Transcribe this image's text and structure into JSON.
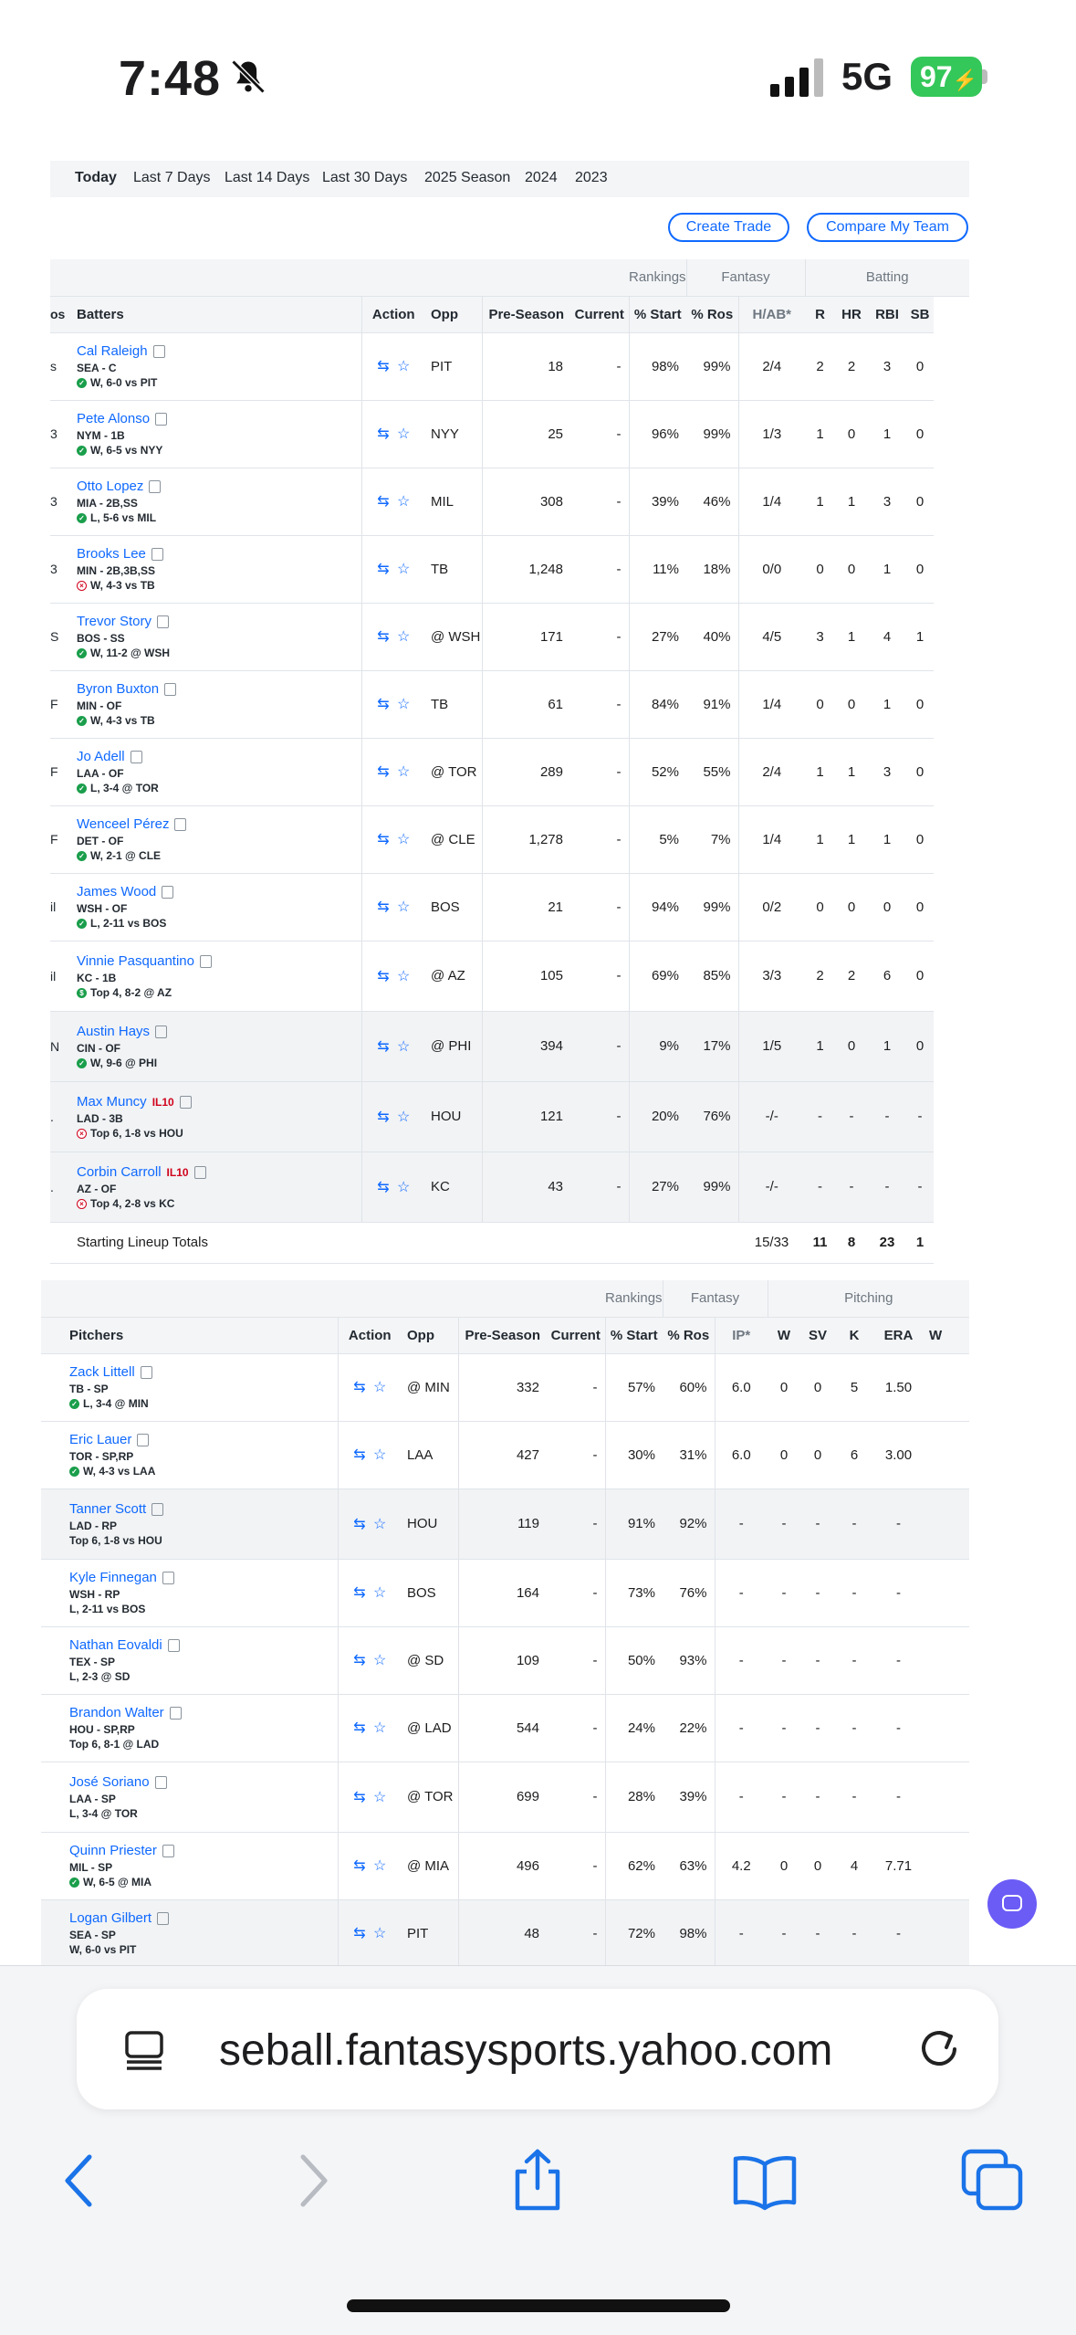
{
  "status_bar": {
    "time": "7:48",
    "network": "5G",
    "battery": "97"
  },
  "period_tabs": [
    "Today",
    "Last 7 Days",
    "Last 14 Days",
    "Last 30 Days",
    "2025 Season",
    "2024",
    "2023"
  ],
  "buttons": {
    "create_trade": "Create Trade",
    "compare_team": "Compare My Team"
  },
  "batters": {
    "groups": {
      "rankings": "Rankings",
      "fantasy": "Fantasy",
      "batting": "Batting"
    },
    "columns": [
      "Batters",
      "Action",
      "Opp",
      "Pre-Season",
      "Current",
      "% Start",
      "% Ros",
      "H/AB*",
      "R",
      "HR",
      "RBI",
      "SB"
    ],
    "rows": [
      {
        "edge": "s",
        "name": "Cal Raleigh",
        "pos": "SEA - C",
        "game": "W, 6-0 vs PIT",
        "status": "win",
        "opp": "PIT",
        "pre": "18",
        "cur": "-",
        "start": "98%",
        "ros": "99%",
        "hab": "2/4",
        "r": "2",
        "hr": "2",
        "rbi": "3",
        "sb": "0"
      },
      {
        "edge": "3",
        "name": "Pete Alonso",
        "pos": "NYM - 1B",
        "game": "W, 6-5 vs NYY",
        "status": "win",
        "opp": "NYY",
        "pre": "25",
        "cur": "-",
        "start": "96%",
        "ros": "99%",
        "hab": "1/3",
        "r": "1",
        "hr": "0",
        "rbi": "1",
        "sb": "0"
      },
      {
        "edge": "3",
        "name": "Otto Lopez",
        "pos": "MIA - 2B,SS",
        "game": "L, 5-6 vs MIL",
        "status": "win",
        "opp": "MIL",
        "pre": "308",
        "cur": "-",
        "start": "39%",
        "ros": "46%",
        "hab": "1/4",
        "r": "1",
        "hr": "1",
        "rbi": "3",
        "sb": "0"
      },
      {
        "edge": "3",
        "name": "Brooks Lee",
        "pos": "MIN - 2B,3B,SS",
        "game": "W, 4-3 vs TB",
        "status": "loss",
        "opp": "TB",
        "pre": "1,248",
        "cur": "-",
        "start": "11%",
        "ros": "18%",
        "hab": "0/0",
        "r": "0",
        "hr": "0",
        "rbi": "1",
        "sb": "0"
      },
      {
        "edge": "S",
        "name": "Trevor Story",
        "pos": "BOS - SS",
        "game": "W, 11-2 @ WSH",
        "status": "win",
        "opp": "@ WSH",
        "pre": "171",
        "cur": "-",
        "start": "27%",
        "ros": "40%",
        "hab": "4/5",
        "r": "3",
        "hr": "1",
        "rbi": "4",
        "sb": "1"
      },
      {
        "edge": "F",
        "name": "Byron Buxton",
        "pos": "MIN - OF",
        "game": "W, 4-3 vs TB",
        "status": "win",
        "opp": "TB",
        "pre": "61",
        "cur": "-",
        "start": "84%",
        "ros": "91%",
        "hab": "1/4",
        "r": "0",
        "hr": "0",
        "rbi": "1",
        "sb": "0"
      },
      {
        "edge": "F",
        "name": "Jo Adell",
        "pos": "LAA - OF",
        "game": "L, 3-4 @ TOR",
        "status": "win",
        "opp": "@ TOR",
        "pre": "289",
        "cur": "-",
        "start": "52%",
        "ros": "55%",
        "hab": "2/4",
        "r": "1",
        "hr": "1",
        "rbi": "3",
        "sb": "0"
      },
      {
        "edge": "F",
        "name": "Wenceel Pérez",
        "pos": "DET - OF",
        "game": "W, 2-1 @ CLE",
        "status": "win",
        "opp": "@ CLE",
        "pre": "1,278",
        "cur": "-",
        "start": "5%",
        "ros": "7%",
        "hab": "1/4",
        "r": "1",
        "hr": "1",
        "rbi": "1",
        "sb": "0"
      },
      {
        "edge": "il",
        "name": "James Wood",
        "pos": "WSH - OF",
        "game": "L, 2-11 vs BOS",
        "status": "win",
        "opp": "BOS",
        "pre": "21",
        "cur": "-",
        "start": "94%",
        "ros": "99%",
        "hab": "0/2",
        "r": "0",
        "hr": "0",
        "rbi": "0",
        "sb": "0"
      },
      {
        "edge": "il",
        "name": "Vinnie Pasquantino",
        "pos": "KC - 1B",
        "game": "Top 4, 8-2 @ AZ",
        "status": "live",
        "opp": "@ AZ",
        "pre": "105",
        "cur": "-",
        "start": "69%",
        "ros": "85%",
        "hab": "3/3",
        "r": "2",
        "hr": "2",
        "rbi": "6",
        "sb": "0"
      },
      {
        "edge": "N",
        "name": "Austin Hays",
        "pos": "CIN - OF",
        "game": "W, 9-6 @ PHI",
        "status": "win",
        "opp": "@ PHI",
        "pre": "394",
        "cur": "-",
        "start": "9%",
        "ros": "17%",
        "hab": "1/5",
        "r": "1",
        "hr": "0",
        "rbi": "1",
        "sb": "0",
        "shade": true
      },
      {
        "edge": ".",
        "name": "Max Muncy",
        "il": "IL10",
        "pos": "LAD - 3B",
        "game": "Top 6, 1-8 vs HOU",
        "status": "loss",
        "opp": "HOU",
        "pre": "121",
        "cur": "-",
        "start": "20%",
        "ros": "76%",
        "hab": "-/-",
        "r": "-",
        "hr": "-",
        "rbi": "-",
        "sb": "-",
        "shade": true
      },
      {
        "edge": ".",
        "name": "Corbin Carroll",
        "il": "IL10",
        "pos": "AZ - OF",
        "game": "Top 4, 2-8 vs KC",
        "status": "loss",
        "opp": "KC",
        "pre": "43",
        "cur": "-",
        "start": "27%",
        "ros": "99%",
        "hab": "-/-",
        "r": "-",
        "hr": "-",
        "rbi": "-",
        "sb": "-",
        "shade": true
      }
    ],
    "totals": {
      "label": "Starting Lineup Totals",
      "hab": "15/33",
      "r": "11",
      "hr": "8",
      "rbi": "23",
      "sb": "1"
    }
  },
  "pitchers": {
    "groups": {
      "rankings": "Rankings",
      "fantasy": "Fantasy",
      "pitching": "Pitching"
    },
    "columns": [
      "Pitchers",
      "Action",
      "Opp",
      "Pre-Season",
      "Current",
      "% Start",
      "% Ros",
      "IP*",
      "W",
      "SV",
      "K",
      "ERA",
      "W"
    ],
    "rows": [
      {
        "name": "Zack Littell",
        "pos": "TB - SP",
        "game": "L, 3-4 @ MIN",
        "status": "win",
        "opp": "@ MIN",
        "pre": "332",
        "cur": "-",
        "start": "57%",
        "ros": "60%",
        "ip": "6.0",
        "w": "0",
        "sv": "0",
        "k": "5",
        "era": "1.50"
      },
      {
        "name": "Eric Lauer",
        "pos": "TOR - SP,RP",
        "game": "W, 4-3 vs LAA",
        "status": "win",
        "opp": "LAA",
        "pre": "427",
        "cur": "-",
        "start": "30%",
        "ros": "31%",
        "ip": "6.0",
        "w": "0",
        "sv": "0",
        "k": "6",
        "era": "3.00"
      },
      {
        "name": "Tanner Scott",
        "pos": "LAD - RP",
        "game": "Top 6, 1-8 vs HOU",
        "status": "none",
        "opp": "HOU",
        "pre": "119",
        "cur": "-",
        "start": "91%",
        "ros": "92%",
        "ip": "-",
        "w": "-",
        "sv": "-",
        "k": "-",
        "era": "-",
        "shade": true
      },
      {
        "name": "Kyle Finnegan",
        "pos": "WSH - RP",
        "game": "L, 2-11 vs BOS",
        "status": "none",
        "opp": "BOS",
        "pre": "164",
        "cur": "-",
        "start": "73%",
        "ros": "76%",
        "ip": "-",
        "w": "-",
        "sv": "-",
        "k": "-",
        "era": "-"
      },
      {
        "name": "Nathan Eovaldi",
        "pos": "TEX - SP",
        "game": "L, 2-3 @ SD",
        "status": "none",
        "opp": "@ SD",
        "pre": "109",
        "cur": "-",
        "start": "50%",
        "ros": "93%",
        "ip": "-",
        "w": "-",
        "sv": "-",
        "k": "-",
        "era": "-"
      },
      {
        "name": "Brandon Walter",
        "pos": "HOU - SP,RP",
        "game": "Top 6, 8-1 @ LAD",
        "status": "none",
        "opp": "@ LAD",
        "pre": "544",
        "cur": "-",
        "start": "24%",
        "ros": "22%",
        "ip": "-",
        "w": "-",
        "sv": "-",
        "k": "-",
        "era": "-"
      },
      {
        "name": "José Soriano",
        "pos": "LAA - SP",
        "game": "L, 3-4 @ TOR",
        "status": "none",
        "opp": "@ TOR",
        "pre": "699",
        "cur": "-",
        "start": "28%",
        "ros": "39%",
        "ip": "-",
        "w": "-",
        "sv": "-",
        "k": "-",
        "era": "-"
      },
      {
        "name": "Quinn Priester",
        "pos": "MIL - SP",
        "game": "W, 6-5 @ MIA",
        "status": "win",
        "opp": "@ MIA",
        "pre": "496",
        "cur": "-",
        "start": "62%",
        "ros": "63%",
        "ip": "4.2",
        "w": "0",
        "sv": "0",
        "k": "4",
        "era": "7.71"
      },
      {
        "name": "Logan Gilbert",
        "pos": "SEA - SP",
        "game": "W, 6-0 vs PIT",
        "status": "none",
        "opp": "PIT",
        "pre": "48",
        "cur": "-",
        "start": "72%",
        "ros": "98%",
        "ip": "-",
        "w": "-",
        "sv": "-",
        "k": "-",
        "era": "-",
        "shade": true
      }
    ]
  },
  "browser": {
    "url": "seball.fantasysports.yahoo.com"
  }
}
